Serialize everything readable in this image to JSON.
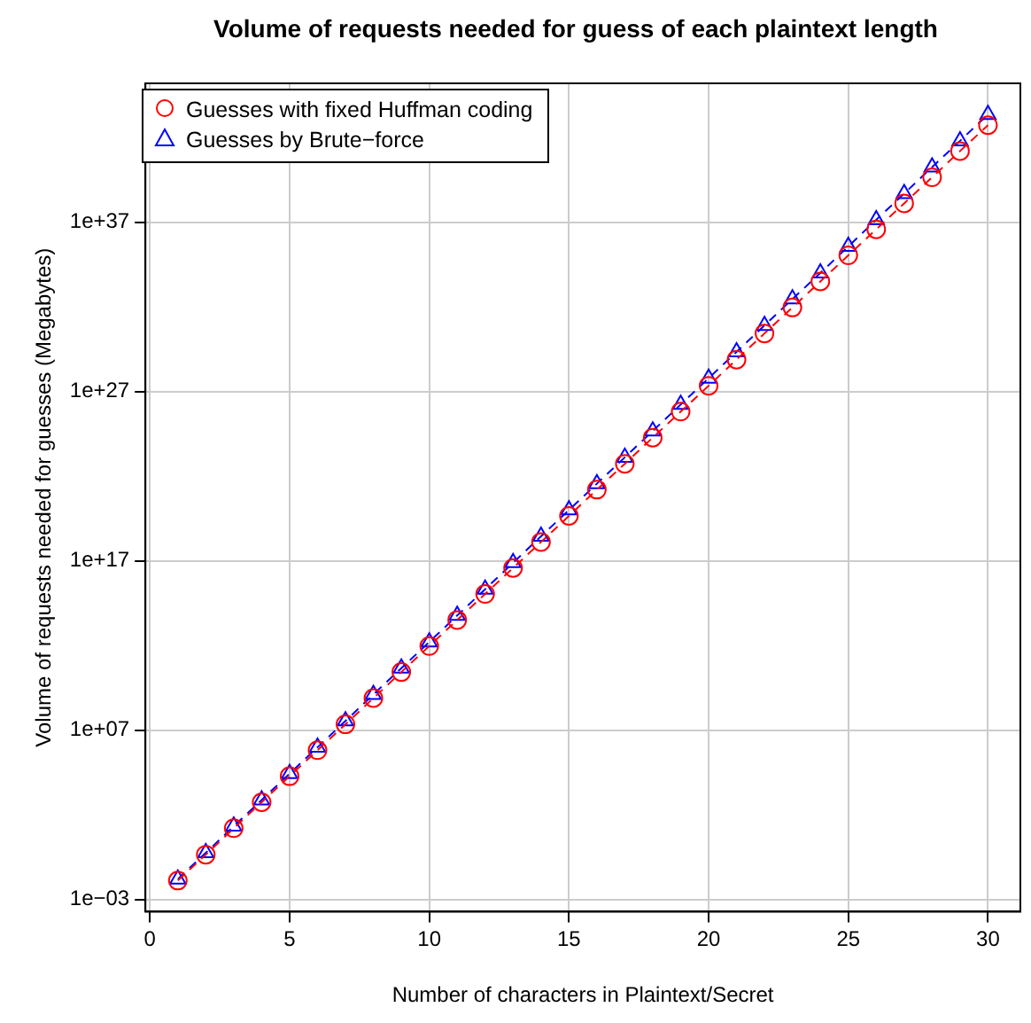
{
  "chart_data": {
    "type": "line",
    "title": "Volume of requests needed for guess of each plaintext length",
    "xlabel": "Number of characters in Plaintext/Secret",
    "ylabel": "Volume of requests needed for guesses (Megabytes)",
    "x": [
      1,
      2,
      3,
      4,
      5,
      6,
      7,
      8,
      9,
      10,
      11,
      12,
      13,
      14,
      15,
      16,
      17,
      18,
      19,
      20,
      21,
      22,
      23,
      24,
      25,
      26,
      27,
      28,
      29,
      30
    ],
    "series": [
      {
        "name": "Guesses with fixed Huffman coding",
        "color": "#ff0000",
        "marker": "circle",
        "values": [
          0.013,
          0.44,
          16,
          550.0,
          19000.0,
          650000.0,
          22000000.0,
          780000000.0,
          27000000000.0,
          920000000000.0,
          32000000000000.0,
          1100000000000000.0,
          3.8e+16,
          1.3e+18,
          4.5e+19,
          1.6e+21,
          5.4e+22,
          1.9e+24,
          6.5e+25,
          2.2e+27,
          7.7e+28,
          2.7e+30,
          9.2e+31,
          3.2e+33,
          1.1e+35,
          3.8e+36,
          1.3e+38,
          4.5e+39,
          1.6e+41,
          5.4e+42
        ]
      },
      {
        "name": "Guesses by Brute−force",
        "color": "#0000ff",
        "marker": "triangle",
        "values": [
          0.016,
          0.57,
          21,
          750.0,
          27000.0,
          970000.0,
          35000000.0,
          1270000000.0,
          46000000000.0,
          1600000000000.0,
          59000000000000.0,
          2100000000000000.0,
          7.7e+16,
          2.8e+18,
          1e+20,
          3.6e+21,
          1.3e+23,
          4.7e+24,
          1.7e+26,
          6.1e+27,
          2.2e+29,
          8e+30,
          2.9e+32,
          1e+34,
          3.7e+35,
          1.4e+37,
          4.9e+38,
          1.8e+40,
          6.4e+41,
          2.3e+43
        ]
      }
    ],
    "xlim": [
      -0.16,
      31.16
    ],
    "xticks": [
      0,
      5,
      10,
      15,
      20,
      25,
      30
    ],
    "ylim": [
      0.00019,
      1.6e+45
    ],
    "yticks": [
      {
        "value": 0.001,
        "label": "1e−03"
      },
      {
        "value": 10000000.0,
        "label": "1e+07"
      },
      {
        "value": 1e+17,
        "label": "1e+17"
      },
      {
        "value": 1e+27,
        "label": "1e+27"
      },
      {
        "value": 1e+37,
        "label": "1e+37"
      }
    ],
    "log": "y",
    "grid": true,
    "legend": "top left",
    "line_style": "dashed"
  }
}
